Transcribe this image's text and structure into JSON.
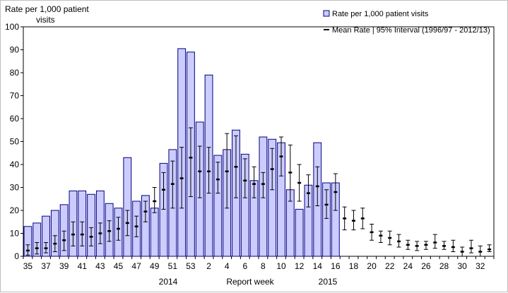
{
  "chart_data": {
    "type": "bar",
    "ylabel": "Rate per 1,000  patient visits",
    "xlabel": "Report week",
    "ylim": [
      0,
      100
    ],
    "yticks": [
      0,
      10,
      20,
      30,
      40,
      50,
      60,
      70,
      80,
      90,
      100
    ],
    "year_labels": [
      "2014",
      "2015"
    ],
    "categories": [
      "35",
      "36",
      "37",
      "38",
      "39",
      "40",
      "41",
      "42",
      "43",
      "44",
      "45",
      "46",
      "47",
      "48",
      "49",
      "50",
      "51",
      "52",
      "53",
      "1",
      "2",
      "3",
      "4",
      "5",
      "6",
      "7",
      "8",
      "9",
      "10",
      "11",
      "12",
      "13",
      "14",
      "15",
      "16",
      "17",
      "18",
      "19",
      "20",
      "21",
      "22",
      "23",
      "24",
      "25",
      "26",
      "27",
      "28",
      "29",
      "30",
      "31",
      "32",
      "33"
    ],
    "tick_labels": [
      "35",
      "",
      "37",
      "",
      "39",
      "",
      "41",
      "",
      "43",
      "",
      "45",
      "",
      "47",
      "",
      "49",
      "",
      "51",
      "",
      "53",
      "",
      "2",
      "",
      "4",
      "",
      "6",
      "",
      "8",
      "",
      "10",
      "",
      "12",
      "",
      "14",
      "",
      "16",
      "",
      "18",
      "",
      "20",
      "",
      "22",
      "",
      "24",
      "",
      "26",
      "",
      "28",
      "",
      "30",
      "",
      "32",
      ""
    ],
    "legend": [
      {
        "key": "bar",
        "label": "Rate per 1,000 patient visits"
      },
      {
        "key": "mean",
        "label": "Mean Rate | 95% Interval (1996/97 - 2012/13)"
      }
    ],
    "colors": {
      "bar_fill": "#ccccff",
      "bar_stroke": "#000080",
      "mean": "#000000",
      "error": "#000000"
    },
    "series": [
      {
        "name": "Rate per 1,000 patient visits",
        "values": [
          13,
          14.5,
          17.5,
          20,
          22.5,
          28.5,
          28.5,
          27,
          28.5,
          23,
          21,
          43,
          24,
          26.5,
          21,
          40.5,
          46.5,
          90.5,
          89,
          58.5,
          79,
          44,
          46.5,
          55,
          44.5,
          33,
          52,
          51,
          49.5,
          29,
          20.5,
          31,
          49.5,
          32,
          32,
          null,
          null,
          null,
          null,
          null,
          null,
          null,
          null,
          null,
          null,
          null,
          null,
          null,
          null,
          null,
          null,
          null
        ]
      },
      {
        "name": "Mean Rate | 95% Interval (1996/97 - 2012/13)",
        "values": [
          2.5,
          3.5,
          3.5,
          5.5,
          7,
          9.5,
          9.5,
          8.5,
          10,
          11,
          12,
          14.5,
          13,
          19.5,
          24,
          29,
          31.5,
          34,
          43,
          37,
          37,
          33.5,
          37,
          39,
          33,
          31.5,
          31.5,
          38,
          43.5,
          36.5,
          32,
          27.5,
          30.5,
          22.5,
          28,
          16.5,
          15.5,
          16.5,
          10.5,
          9,
          8,
          6.5,
          5,
          4.5,
          5,
          6,
          4.5,
          4,
          2,
          3.5,
          2,
          3
        ],
        "low": [
          0.5,
          1,
          1.5,
          2,
          2.5,
          4.5,
          4.5,
          4.5,
          5.5,
          6.5,
          7,
          9,
          8.5,
          15,
          19,
          20.5,
          21,
          21,
          26,
          25.5,
          27.5,
          27.5,
          21,
          25.5,
          25.5,
          25.5,
          25.5,
          29,
          35,
          24,
          24,
          21.5,
          22,
          16.5,
          20,
          11.5,
          11.5,
          12,
          7,
          6,
          5,
          4,
          3,
          2.5,
          3,
          3.5,
          3,
          2,
          0,
          1.5,
          0,
          2
        ],
        "high": [
          5,
          6,
          6,
          9,
          11,
          15,
          15,
          12.5,
          14.5,
          15.5,
          17,
          20,
          17.5,
          24,
          30,
          36.5,
          41.5,
          47.5,
          56,
          48,
          47.5,
          41,
          53.5,
          52.5,
          42.5,
          39,
          36.5,
          47,
          52,
          48.5,
          40,
          35.5,
          39,
          29,
          36,
          21.5,
          20,
          21,
          14,
          11,
          11,
          9.5,
          7,
          6.5,
          6.5,
          9.5,
          6.5,
          7,
          4,
          7,
          4.5,
          5
        ]
      }
    ]
  }
}
